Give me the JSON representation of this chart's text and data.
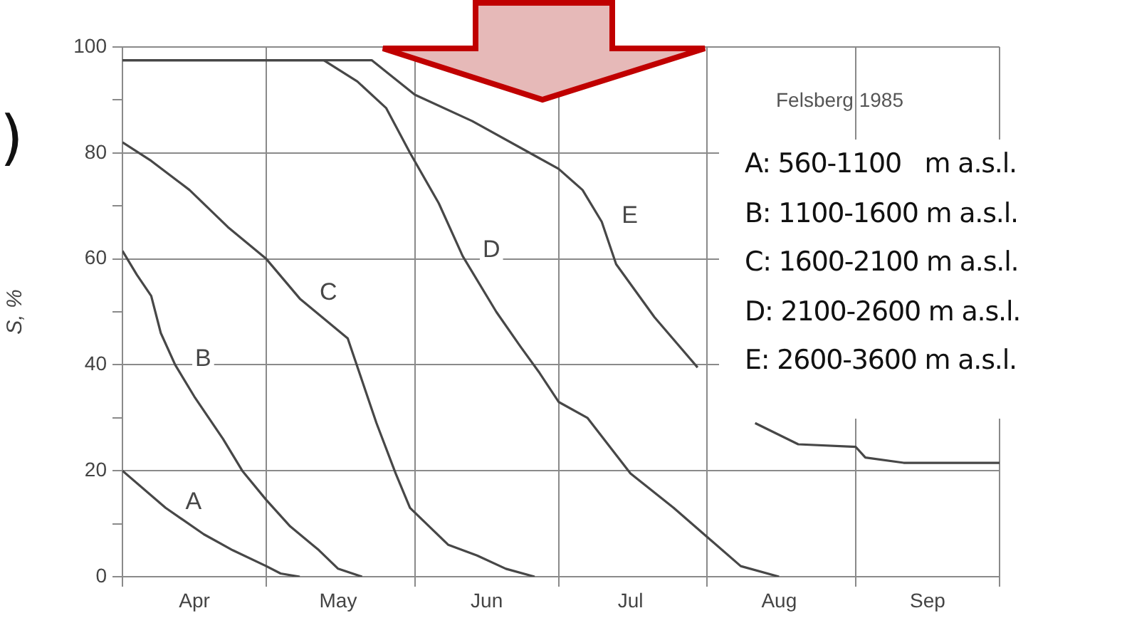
{
  "chart_data": {
    "type": "line",
    "ylabel": "S, %",
    "marker": "none",
    "grid": true,
    "xlim": [
      "--04-01",
      "--10-01"
    ],
    "xticks": [
      {
        "value": "--04-01",
        "label": null
      },
      {
        "value": "--04-16",
        "label": "Apr"
      },
      {
        "value": "--05-01",
        "label": null
      },
      {
        "value": "--05-16",
        "label": "May"
      },
      {
        "value": "--06-01",
        "label": null
      },
      {
        "value": "--06-16",
        "label": "Jun"
      },
      {
        "value": "--07-01",
        "label": null
      },
      {
        "value": "--07-16",
        "label": "Jul"
      },
      {
        "value": "--08-01",
        "label": null
      },
      {
        "value": "--08-16",
        "label": "Aug"
      },
      {
        "value": "--09-01",
        "label": null
      },
      {
        "value": "--09-16",
        "label": "Sep"
      },
      {
        "value": "--10-01",
        "label": null
      }
    ],
    "ylim": [
      0,
      100
    ],
    "yticks": [
      0,
      {
        "value": 10,
        "label": null
      },
      20,
      {
        "value": 30,
        "label": null
      },
      40,
      {
        "value": 50,
        "label": null
      },
      60,
      {
        "value": 70,
        "label": null
      },
      80,
      {
        "value": 90,
        "label": null
      },
      100
    ],
    "series": [
      {
        "name": "A",
        "color": "#474747",
        "x": [
          "--04-01",
          "--04-10",
          "--04-18",
          "--04-24",
          "--05-01",
          "--05-04",
          "--05-08"
        ],
        "values": [
          20,
          13,
          8,
          5,
          2,
          0.6,
          0
        ]
      },
      {
        "name": "B",
        "color": "#474747",
        "x": [
          "--04-01",
          "--04-04",
          "--04-07",
          "--04-09",
          "--04-12",
          "--04-16",
          "--04-19",
          "--04-22",
          "--04-26",
          "--05-01",
          "--05-06",
          "--05-12",
          "--05-16",
          "--05-21"
        ],
        "values": [
          61.5,
          57,
          53,
          46,
          40,
          34,
          30,
          26,
          20,
          14.5,
          9.5,
          5,
          1.5,
          0
        ]
      },
      {
        "name": "C",
        "color": "#474747",
        "x": [
          "--04-01",
          "--04-07",
          "--04-15",
          "--04-23",
          "--05-01",
          "--05-08",
          "--05-18",
          "--05-21",
          "--05-24",
          "--05-28",
          "--05-31",
          "--06-08",
          "--06-14",
          "--06-20",
          "--06-26"
        ],
        "values": [
          82,
          78.5,
          73,
          66,
          60,
          52.5,
          45,
          37,
          29,
          19.5,
          13,
          6,
          4,
          1.5,
          0
        ]
      },
      {
        "name": "D",
        "color": "#474747",
        "x": [
          "--04-01",
          "--05-13",
          "--05-20",
          "--05-26",
          "--05-31",
          "--06-06",
          "--06-11",
          "--06-18",
          "--06-23",
          "--06-27",
          "--07-01",
          "--07-07",
          "--07-16",
          "--07-25",
          "--08-01",
          "--08-08",
          "--08-16"
        ],
        "values": [
          97.5,
          97.5,
          93.5,
          88.5,
          80,
          70.5,
          60.5,
          50,
          43.5,
          38.5,
          33,
          30,
          19.5,
          13,
          7.5,
          2,
          0
        ]
      },
      {
        "name": "E",
        "color": "#474747",
        "x": [
          "--04-01",
          "--05-23",
          "--06-01",
          "--06-13",
          "--06-27",
          "--07-01",
          "--07-06",
          "--07-10",
          "--07-13",
          "--07-21",
          "--07-30",
          "--08-04",
          "--08-11",
          "--08-20",
          "--09-01",
          "--09-03",
          "--09-11",
          "--10-01"
        ],
        "values": [
          97.5,
          97.5,
          91,
          86,
          79,
          77,
          73,
          67,
          59,
          49,
          39.5,
          null,
          29,
          25,
          24.5,
          22.5,
          21.5,
          21.5
        ]
      }
    ],
    "annotations": [
      ")",
      "Felsberg 1985",
      "A: 560-1100   m a.s.l.",
      "B: 1100-1600 m a.s.l.",
      "C: 1600-2100 m a.s.l.",
      "D: 2100-2600 m a.s.l.",
      "E: 2600-3600 m a.s.l."
    ]
  }
}
